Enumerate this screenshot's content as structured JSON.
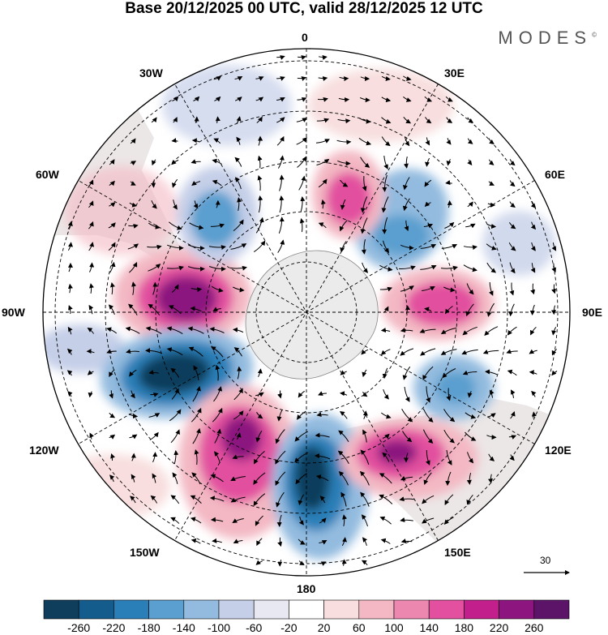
{
  "title": "Base 20/12/2025 00 UTC, valid 28/12/2025 12 UTC",
  "brand": "MODES",
  "brand_mark": "©",
  "longitude_labels": {
    "lon_0": "0",
    "lon_30e": "30E",
    "lon_60e": "60E",
    "lon_90e": "90E",
    "lon_120e": "120E",
    "lon_150e": "150E",
    "lon_180": "180",
    "lon_150w": "150W",
    "lon_120w": "120W",
    "lon_90w": "90W",
    "lon_60w": "60W",
    "lon_30w": "30W"
  },
  "reference_vector": {
    "label": "30"
  },
  "colorbar": {
    "colors": [
      "#0f3d5c",
      "#135c8c",
      "#2b7fb8",
      "#5a9fcf",
      "#93bbdf",
      "#c5cfe8",
      "#e8e8f2",
      "#ffffff",
      "#f8dede",
      "#f3b8c3",
      "#ec87b0",
      "#e2509f",
      "#c31f8c",
      "#8c157f",
      "#5c1469"
    ],
    "ticks": [
      "-260",
      "-220",
      "-180",
      "-140",
      "-100",
      "-60",
      "-20",
      "20",
      "60",
      "100",
      "140",
      "180",
      "220",
      "260"
    ]
  },
  "colors": {
    "antarctica": "#ebebeb",
    "land_shade": "#c8c8c8"
  }
}
